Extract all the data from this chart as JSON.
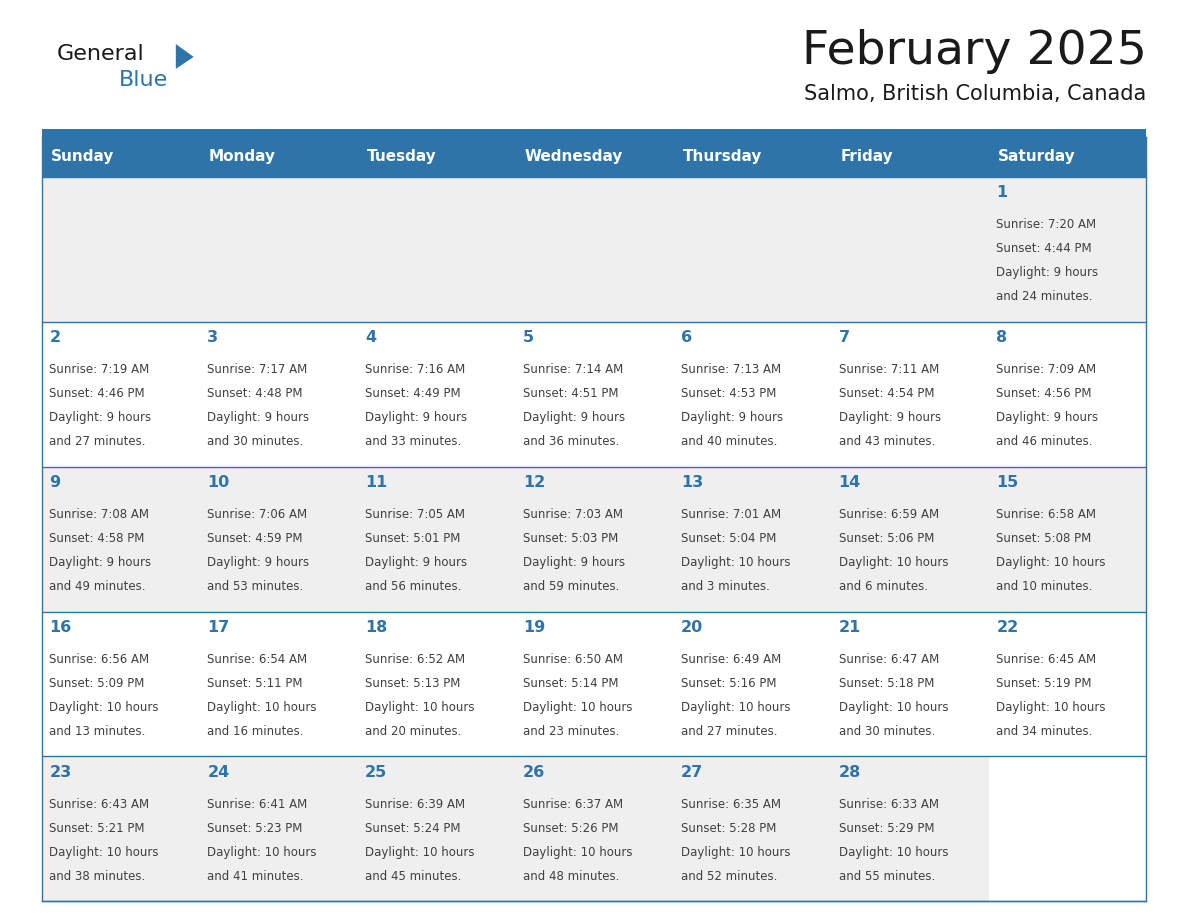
{
  "title": "February 2025",
  "subtitle": "Salmo, British Columbia, Canada",
  "days_of_week": [
    "Sunday",
    "Monday",
    "Tuesday",
    "Wednesday",
    "Thursday",
    "Friday",
    "Saturday"
  ],
  "header_bg": "#2E74A8",
  "header_text": "#FFFFFF",
  "day_num_color": "#2E74A8",
  "text_color": "#404040",
  "border_color": "#2E74A8",
  "bg_colors": [
    "#EFEFEF",
    "#FFFFFF",
    "#EFEFEF",
    "#FFFFFF",
    "#EFEFEF"
  ],
  "calendar_data": {
    "1": {
      "sunrise": "7:20 AM",
      "sunset": "4:44 PM",
      "daylight": "9 hours and 24 minutes"
    },
    "2": {
      "sunrise": "7:19 AM",
      "sunset": "4:46 PM",
      "daylight": "9 hours and 27 minutes"
    },
    "3": {
      "sunrise": "7:17 AM",
      "sunset": "4:48 PM",
      "daylight": "9 hours and 30 minutes"
    },
    "4": {
      "sunrise": "7:16 AM",
      "sunset": "4:49 PM",
      "daylight": "9 hours and 33 minutes"
    },
    "5": {
      "sunrise": "7:14 AM",
      "sunset": "4:51 PM",
      "daylight": "9 hours and 36 minutes"
    },
    "6": {
      "sunrise": "7:13 AM",
      "sunset": "4:53 PM",
      "daylight": "9 hours and 40 minutes"
    },
    "7": {
      "sunrise": "7:11 AM",
      "sunset": "4:54 PM",
      "daylight": "9 hours and 43 minutes"
    },
    "8": {
      "sunrise": "7:09 AM",
      "sunset": "4:56 PM",
      "daylight": "9 hours and 46 minutes"
    },
    "9": {
      "sunrise": "7:08 AM",
      "sunset": "4:58 PM",
      "daylight": "9 hours and 49 minutes"
    },
    "10": {
      "sunrise": "7:06 AM",
      "sunset": "4:59 PM",
      "daylight": "9 hours and 53 minutes"
    },
    "11": {
      "sunrise": "7:05 AM",
      "sunset": "5:01 PM",
      "daylight": "9 hours and 56 minutes"
    },
    "12": {
      "sunrise": "7:03 AM",
      "sunset": "5:03 PM",
      "daylight": "9 hours and 59 minutes"
    },
    "13": {
      "sunrise": "7:01 AM",
      "sunset": "5:04 PM",
      "daylight": "10 hours and 3 minutes"
    },
    "14": {
      "sunrise": "6:59 AM",
      "sunset": "5:06 PM",
      "daylight": "10 hours and 6 minutes"
    },
    "15": {
      "sunrise": "6:58 AM",
      "sunset": "5:08 PM",
      "daylight": "10 hours and 10 minutes"
    },
    "16": {
      "sunrise": "6:56 AM",
      "sunset": "5:09 PM",
      "daylight": "10 hours and 13 minutes"
    },
    "17": {
      "sunrise": "6:54 AM",
      "sunset": "5:11 PM",
      "daylight": "10 hours and 16 minutes"
    },
    "18": {
      "sunrise": "6:52 AM",
      "sunset": "5:13 PM",
      "daylight": "10 hours and 20 minutes"
    },
    "19": {
      "sunrise": "6:50 AM",
      "sunset": "5:14 PM",
      "daylight": "10 hours and 23 minutes"
    },
    "20": {
      "sunrise": "6:49 AM",
      "sunset": "5:16 PM",
      "daylight": "10 hours and 27 minutes"
    },
    "21": {
      "sunrise": "6:47 AM",
      "sunset": "5:18 PM",
      "daylight": "10 hours and 30 minutes"
    },
    "22": {
      "sunrise": "6:45 AM",
      "sunset": "5:19 PM",
      "daylight": "10 hours and 34 minutes"
    },
    "23": {
      "sunrise": "6:43 AM",
      "sunset": "5:21 PM",
      "daylight": "10 hours and 38 minutes"
    },
    "24": {
      "sunrise": "6:41 AM",
      "sunset": "5:23 PM",
      "daylight": "10 hours and 41 minutes"
    },
    "25": {
      "sunrise": "6:39 AM",
      "sunset": "5:24 PM",
      "daylight": "10 hours and 45 minutes"
    },
    "26": {
      "sunrise": "6:37 AM",
      "sunset": "5:26 PM",
      "daylight": "10 hours and 48 minutes"
    },
    "27": {
      "sunrise": "6:35 AM",
      "sunset": "5:28 PM",
      "daylight": "10 hours and 52 minutes"
    },
    "28": {
      "sunrise": "6:33 AM",
      "sunset": "5:29 PM",
      "daylight": "10 hours and 55 minutes"
    }
  },
  "logo_text_general": "General",
  "logo_text_blue": "Blue",
  "logo_triangle_color": "#2E74A8"
}
